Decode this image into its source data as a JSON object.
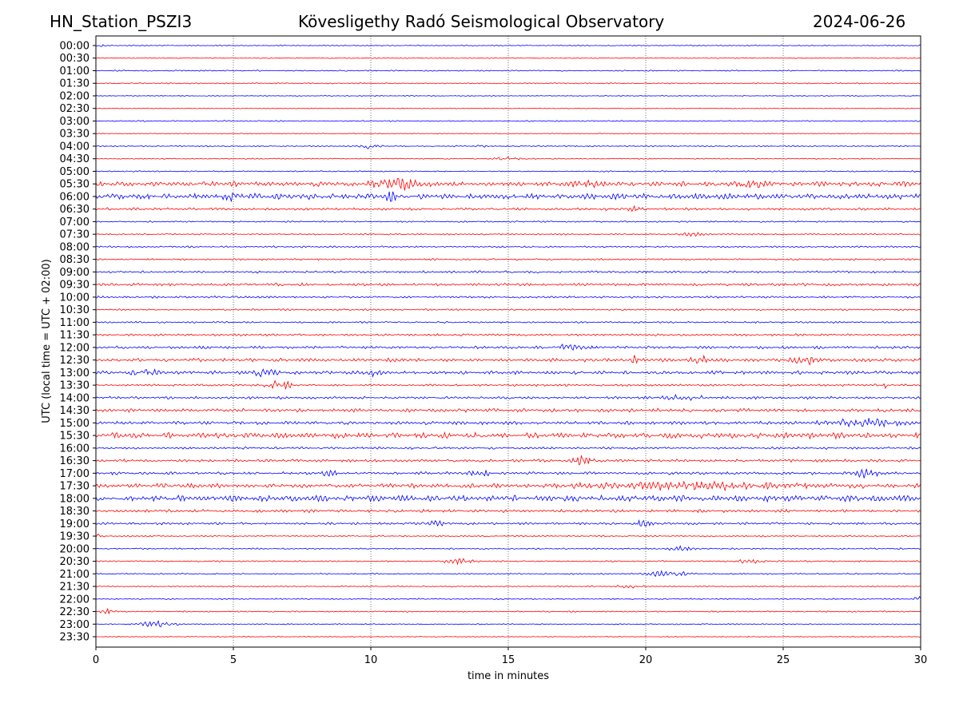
{
  "header": {
    "station": "HN_Station_PSZI3",
    "observatory": "Kövesligethy Radó Seismological Observatory",
    "date": "2024-06-26"
  },
  "chart_data": {
    "type": "line",
    "title": "Kövesligethy Radó Seismological Observatory",
    "xlabel": "time in minutes",
    "ylabel": "UTC (local time = UTC + 02:00)",
    "xlim": [
      0,
      30
    ],
    "xticks": [
      "0",
      "5",
      "10",
      "15",
      "20",
      "25",
      "30"
    ],
    "grid": "vertical dotted at every 5 minutes",
    "row_labels": [
      "00:00",
      "00:30",
      "01:00",
      "01:30",
      "02:00",
      "02:30",
      "03:00",
      "03:30",
      "04:00",
      "04:30",
      "05:00",
      "05:30",
      "06:00",
      "06:30",
      "07:00",
      "07:30",
      "08:00",
      "08:30",
      "09:00",
      "09:30",
      "10:00",
      "10:30",
      "11:00",
      "11:30",
      "12:00",
      "12:30",
      "13:00",
      "13:30",
      "14:00",
      "14:30",
      "15:00",
      "15:30",
      "16:00",
      "16:30",
      "17:00",
      "17:30",
      "18:00",
      "18:30",
      "19:00",
      "19:30",
      "20:00",
      "20:30",
      "21:00",
      "21:30",
      "22:00",
      "22:30",
      "23:00",
      "23:30"
    ],
    "row_colors": [
      "#0000ff",
      "#ff0000"
    ],
    "baseline_noise": [
      0.5,
      0.4,
      0.6,
      0.5,
      0.4,
      0.4,
      0.6,
      0.4,
      0.6,
      0.5,
      0.6,
      2.2,
      2.6,
      1.2,
      0.7,
      0.7,
      0.8,
      0.8,
      1.0,
      1.3,
      1.0,
      0.8,
      0.8,
      1.0,
      1.3,
      1.6,
      1.6,
      1.0,
      1.2,
      1.6,
      1.6,
      2.6,
      1.0,
      1.3,
      1.3,
      2.0,
      2.8,
      1.4,
      1.1,
      0.7,
      0.7,
      0.7,
      0.6,
      0.6,
      0.6,
      0.6,
      0.5,
      0.4
    ],
    "events": [
      {
        "row": 0,
        "minute": 0.1,
        "amp": 2,
        "dur": 0.3
      },
      {
        "row": 8,
        "minute": 10,
        "amp": 3,
        "dur": 0.8
      },
      {
        "row": 8,
        "minute": 14,
        "amp": 1.5,
        "dur": 0.3
      },
      {
        "row": 9,
        "minute": 15,
        "amp": 2,
        "dur": 1
      },
      {
        "row": 11,
        "minute": 11,
        "amp": 6,
        "dur": 1.5
      },
      {
        "row": 11,
        "minute": 18,
        "amp": 4,
        "dur": 1
      },
      {
        "row": 11,
        "minute": 23.8,
        "amp": 5,
        "dur": 0.8
      },
      {
        "row": 12,
        "minute": 5,
        "amp": 4,
        "dur": 0.5
      },
      {
        "row": 12,
        "minute": 10.5,
        "amp": 4,
        "dur": 1
      },
      {
        "row": 13,
        "minute": 19.5,
        "amp": 2,
        "dur": 1
      },
      {
        "row": 15,
        "minute": 21.8,
        "amp": 2,
        "dur": 1
      },
      {
        "row": 24,
        "minute": 17.2,
        "amp": 3,
        "dur": 1
      },
      {
        "row": 25,
        "minute": 11,
        "amp": 4,
        "dur": 0.5
      },
      {
        "row": 25,
        "minute": 19.6,
        "amp": 4,
        "dur": 0.4
      },
      {
        "row": 25,
        "minute": 22,
        "amp": 4,
        "dur": 0.6
      },
      {
        "row": 25,
        "minute": 25.8,
        "amp": 4,
        "dur": 1
      },
      {
        "row": 26,
        "minute": 1.8,
        "amp": 3,
        "dur": 0.8
      },
      {
        "row": 26,
        "minute": 6,
        "amp": 3,
        "dur": 1.2
      },
      {
        "row": 26,
        "minute": 10,
        "amp": 3,
        "dur": 0.6
      },
      {
        "row": 27,
        "minute": 6.7,
        "amp": 6,
        "dur": 0.8
      },
      {
        "row": 27,
        "minute": 28.7,
        "amp": 6,
        "dur": 0.1
      },
      {
        "row": 28,
        "minute": 21.3,
        "amp": 2.5,
        "dur": 1.5
      },
      {
        "row": 30,
        "minute": 28,
        "amp": 3.5,
        "dur": 2.5
      },
      {
        "row": 33,
        "minute": 17.7,
        "amp": 5,
        "dur": 0.6
      },
      {
        "row": 34,
        "minute": 8.5,
        "amp": 3.5,
        "dur": 0.6
      },
      {
        "row": 34,
        "minute": 14,
        "amp": 3,
        "dur": 1
      },
      {
        "row": 34,
        "minute": 28,
        "amp": 4,
        "dur": 1
      },
      {
        "row": 35,
        "minute": 22,
        "amp": 3.5,
        "dur": 8
      },
      {
        "row": 38,
        "minute": 12.3,
        "amp": 3,
        "dur": 0.6
      },
      {
        "row": 38,
        "minute": 20,
        "amp": 4,
        "dur": 0.6
      },
      {
        "row": 39,
        "minute": 0.1,
        "amp": 3,
        "dur": 0.3
      },
      {
        "row": 40,
        "minute": 21.3,
        "amp": 3,
        "dur": 0.8
      },
      {
        "row": 41,
        "minute": 13.3,
        "amp": 3,
        "dur": 1
      },
      {
        "row": 41,
        "minute": 23.8,
        "amp": 2,
        "dur": 1
      },
      {
        "row": 42,
        "minute": 20.8,
        "amp": 3,
        "dur": 1.5
      },
      {
        "row": 43,
        "minute": 19.4,
        "amp": 2,
        "dur": 0.8
      },
      {
        "row": 44,
        "minute": 29.9,
        "amp": 3,
        "dur": 0.3
      },
      {
        "row": 45,
        "minute": 0.4,
        "amp": 3,
        "dur": 0.6
      },
      {
        "row": 46,
        "minute": 2.2,
        "amp": 3,
        "dur": 1.4
      }
    ]
  }
}
